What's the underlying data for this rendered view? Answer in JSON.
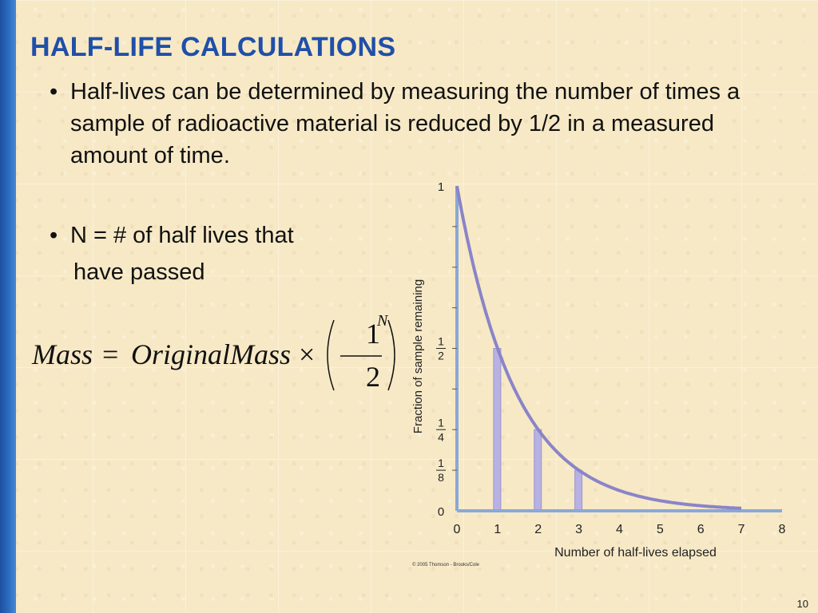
{
  "slide": {
    "title": "HALF-LIFE CALCULATIONS",
    "bullets": [
      "Half-lives can be determined by measuring the number of times a sample of radioactive material is reduced by 1/2 in a measured amount of time.",
      "N = # of half lives that"
    ],
    "bullet2_continuation": "have passed",
    "bullet_char": "•",
    "page_number": "10"
  },
  "formula": {
    "lhs": "Mass",
    "equals": "=",
    "rhs": "OriginalMass",
    "times": "×",
    "numerator": "1",
    "denominator": "2",
    "exponent": "N"
  },
  "chart_data": {
    "type": "line",
    "xlabel": "Number of half-lives elapsed",
    "ylabel": "Fraction of sample remaining",
    "x_ticks": [
      "0",
      "1",
      "2",
      "3",
      "4",
      "5",
      "6",
      "7",
      "8"
    ],
    "y_tick_labels": [
      {
        "value": 0,
        "label": "0"
      },
      {
        "value": 0.125,
        "num": "1",
        "den": "8"
      },
      {
        "value": 0.25,
        "num": "1",
        "den": "4"
      },
      {
        "value": 0.5,
        "num": "1",
        "den": "2"
      },
      {
        "value": 1,
        "label": "1"
      }
    ],
    "xlim": [
      0,
      8
    ],
    "ylim": [
      0,
      1
    ],
    "curve": {
      "x": [
        0,
        1,
        2,
        3,
        4,
        5,
        6,
        7
      ],
      "y": [
        1,
        0.5,
        0.25,
        0.125,
        0.0625,
        0.03125,
        0.015625,
        0.0078125
      ]
    },
    "bars": [
      {
        "x": 1,
        "y": 0.5
      },
      {
        "x": 2,
        "y": 0.25
      },
      {
        "x": 3,
        "y": 0.125
      }
    ],
    "copyright": "© 2005 Thomson - Brooks/Cole",
    "colors": {
      "curve": "#8a84c8",
      "bars": "#b8b2e2",
      "axis": "#8aa8d8"
    }
  }
}
